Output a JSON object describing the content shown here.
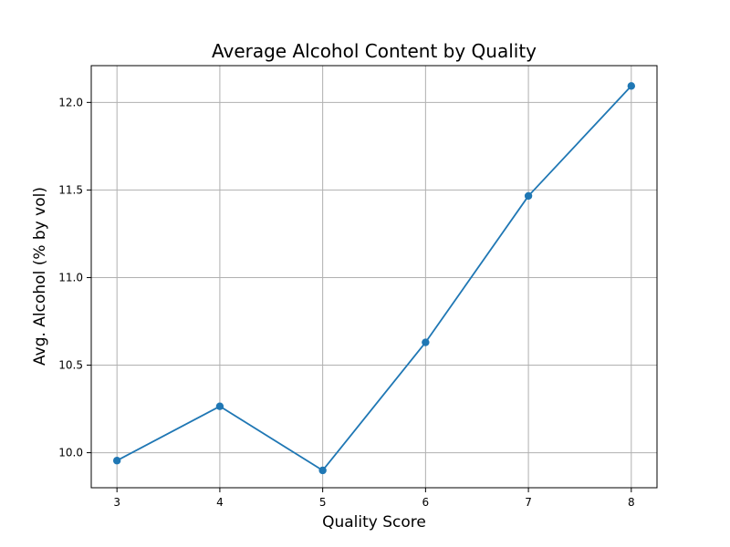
{
  "chart_data": {
    "type": "line",
    "title": "Average Alcohol Content by Quality",
    "xlabel": "Quality Score",
    "ylabel": "Avg. Alcohol (% by vol)",
    "x": [
      3,
      4,
      5,
      6,
      7,
      8
    ],
    "x_tick_labels": [
      "3",
      "4",
      "5",
      "6",
      "7",
      "8"
    ],
    "y_ticks": [
      10.0,
      10.5,
      11.0,
      11.5,
      12.0
    ],
    "y_tick_labels": [
      "10.0",
      "10.5",
      "11.0",
      "11.5",
      "12.0"
    ],
    "xlim": [
      2.75,
      8.25
    ],
    "ylim": [
      9.8,
      12.21
    ],
    "grid": true,
    "series": [
      {
        "values": [
          9.955,
          10.265,
          9.899,
          10.63,
          11.466,
          12.094
        ],
        "color": "#1f77b4",
        "marker": "circle"
      }
    ]
  }
}
